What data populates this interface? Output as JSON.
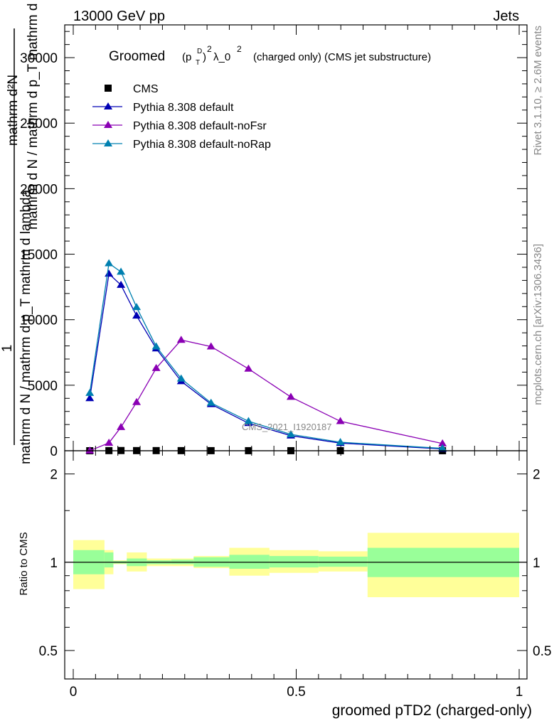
{
  "header": {
    "left": "13000 GeV pp",
    "right": "Jets"
  },
  "side_labels": {
    "rivet": "Rivet 3.1.10, ≥ 2.6M events",
    "mcplots": "mcplots.cern.ch [arXiv:1306.3436]"
  },
  "watermark": "CMS_2021_I1920187",
  "chart_data": [
    {
      "type": "line",
      "title_parts": {
        "a": "Groomed",
        "b": "(p",
        "c": "D",
        "d": "T",
        "e": ")",
        "f": "2",
        "g": "λ_0",
        "h": "2",
        "i": "(charged only) (CMS jet substructure)"
      },
      "ylabel": "mathrm d N / mathrm d p_T mathrm d lambda",
      "ylabel_top": "mathrm d²N",
      "ylabel_bottom": "mathrm d N / mathrm d p_T mathrm d lambda",
      "ylabel_prefix": "1",
      "ylim": [
        0,
        32500
      ],
      "yticks": [
        0,
        5000,
        10000,
        15000,
        20000,
        25000,
        30000
      ],
      "xlim": [
        0,
        1
      ],
      "legend_position": "top-left",
      "bin_edges": [
        0,
        0.07,
        0.09,
        0.12,
        0.165,
        0.22,
        0.27,
        0.35,
        0.44,
        0.55,
        0.66,
        1.0
      ],
      "x": [
        0.037,
        0.08,
        0.107,
        0.142,
        0.186,
        0.242,
        0.309,
        0.393,
        0.488,
        0.599,
        0.828
      ],
      "series": [
        {
          "name": "CMS",
          "marker": "square",
          "color": "#000000",
          "values": [
            0,
            10,
            15,
            10,
            10,
            8,
            6,
            5,
            4,
            3,
            2
          ]
        },
        {
          "name": "Pythia 8.308 default",
          "marker": "triangle",
          "color": "#0000b4",
          "values": [
            4000,
            13500,
            12650,
            10300,
            7800,
            5300,
            3550,
            2100,
            1150,
            580,
            140
          ]
        },
        {
          "name": "Pythia 8.308 default-noFsr",
          "marker": "triangle",
          "color": "#8a00b4",
          "values": [
            0,
            600,
            1800,
            3700,
            6300,
            8450,
            7950,
            6250,
            4100,
            2250,
            550
          ]
        },
        {
          "name": "Pythia 8.308 default-noRap",
          "marker": "triangle",
          "color": "#0080b0",
          "values": [
            4400,
            14300,
            13650,
            10950,
            7950,
            5500,
            3650,
            2250,
            1250,
            650,
            180
          ]
        }
      ]
    },
    {
      "type": "area",
      "ylabel": "Ratio to CMS",
      "xlabel": "groomed pTD2 (charged-only)",
      "ylim": [
        0.4,
        2.4
      ],
      "yscale": "log",
      "yticks": [
        0.5,
        1,
        2
      ],
      "ytick_labels": [
        "0.5",
        "1",
        "2"
      ],
      "xticks": [
        0,
        0.5,
        1
      ],
      "xtick_labels": [
        "0",
        "0.5",
        "1"
      ],
      "bin_edges": [
        0,
        0.07,
        0.09,
        0.12,
        0.165,
        0.22,
        0.27,
        0.35,
        0.44,
        0.55,
        0.66,
        1.0
      ],
      "band_inner": [
        [
          0.91,
          1.1
        ],
        [
          0.96,
          1.08
        ],
        [
          0.99,
          1.01
        ],
        [
          0.97,
          1.03
        ],
        [
          0.985,
          1.015
        ],
        [
          0.985,
          1.02
        ],
        [
          0.965,
          1.04
        ],
        [
          0.95,
          1.06
        ],
        [
          0.96,
          1.05
        ],
        [
          0.965,
          1.045
        ],
        [
          0.89,
          1.12
        ]
      ],
      "band_outer": [
        [
          0.81,
          1.19
        ],
        [
          0.91,
          1.1
        ],
        [
          0.985,
          1.015
        ],
        [
          0.93,
          1.08
        ],
        [
          0.97,
          1.03
        ],
        [
          0.97,
          1.03
        ],
        [
          0.955,
          1.05
        ],
        [
          0.9,
          1.12
        ],
        [
          0.92,
          1.1
        ],
        [
          0.93,
          1.09
        ],
        [
          0.76,
          1.26
        ]
      ],
      "band_colors": {
        "inner": "#99ff99",
        "outer": "#ffff99"
      }
    }
  ]
}
